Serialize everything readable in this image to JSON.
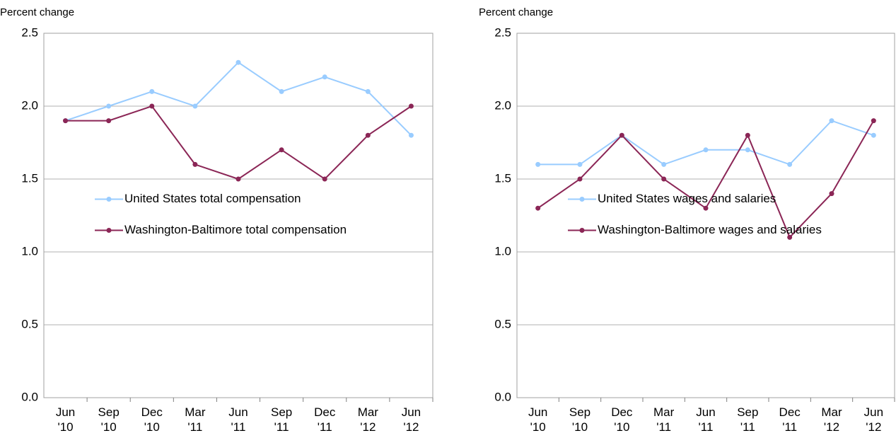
{
  "chart_data": [
    {
      "type": "line",
      "y_label": "Percent change",
      "categories": [
        "Jun '10",
        "Sep '10",
        "Dec '10",
        "Mar '11",
        "Jun '11",
        "Sep '11",
        "Dec '11",
        "Mar '12",
        "Jun '12"
      ],
      "series": [
        {
          "name": "United States total compensation",
          "color": "#99ccff",
          "values": [
            1.9,
            2.0,
            2.1,
            2.0,
            2.3,
            2.1,
            2.2,
            2.1,
            1.8
          ]
        },
        {
          "name": "Washington-Baltimore total compensation",
          "color": "#8b2656",
          "values": [
            1.9,
            1.9,
            2.0,
            1.6,
            1.5,
            1.7,
            1.5,
            1.8,
            2.0
          ]
        }
      ],
      "ylim": [
        0,
        2.5
      ],
      "yticks": [
        {
          "value": 0,
          "label": "0.0"
        },
        0.5,
        {
          "value": 1,
          "label": "1.0"
        },
        1.5,
        {
          "value": 2,
          "label": "2.0"
        },
        2.5
      ],
      "grid": true,
      "legend": "center-left"
    },
    {
      "type": "line",
      "y_label": "Percent change",
      "categories": [
        "Jun '10",
        "Sep '10",
        "Dec '10",
        "Mar '11",
        "Jun '11",
        "Sep '11",
        "Dec '11",
        "Mar '12",
        "Jun '12"
      ],
      "series": [
        {
          "name": "United States wages and salaries",
          "color": "#99ccff",
          "values": [
            1.6,
            1.6,
            1.8,
            1.6,
            1.7,
            1.7,
            1.6,
            1.9,
            1.8
          ]
        },
        {
          "name": "Washington-Baltimore wages and salaries",
          "color": "#8b2656",
          "values": [
            1.3,
            1.5,
            1.8,
            1.5,
            1.3,
            1.8,
            1.1,
            1.4,
            1.9
          ]
        }
      ],
      "ylim": [
        0,
        2.5
      ],
      "yticks": [
        {
          "value": 0,
          "label": "0.0"
        },
        0.5,
        {
          "value": 1,
          "label": "1.0"
        },
        1.5,
        {
          "value": 2,
          "label": "2.0"
        },
        2.5
      ],
      "grid": true,
      "legend": "center-left"
    }
  ]
}
